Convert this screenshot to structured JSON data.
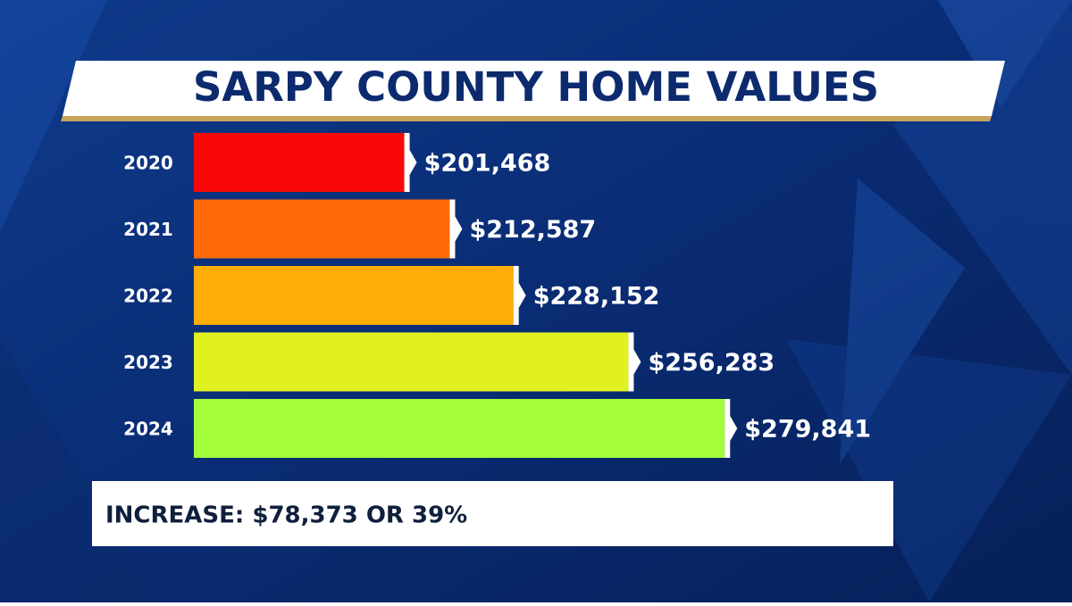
{
  "chart_data": {
    "type": "bar",
    "orientation": "horizontal",
    "title": "SARPY COUNTY HOME VALUES",
    "categories": [
      "2020",
      "2021",
      "2022",
      "2023",
      "2024"
    ],
    "values": [
      201468,
      212587,
      228152,
      256283,
      279841
    ],
    "value_labels": [
      "$201,468",
      "$212,587",
      "$228,152",
      "$256,283",
      "$279,841"
    ],
    "colors": [
      "#f90707",
      "#ff6a0a",
      "#ffad08",
      "#e0f11f",
      "#a3fd3a"
    ],
    "xlim": [
      150000,
      280000
    ],
    "annotation": "INCREASE: $78,373 OR 39%"
  }
}
